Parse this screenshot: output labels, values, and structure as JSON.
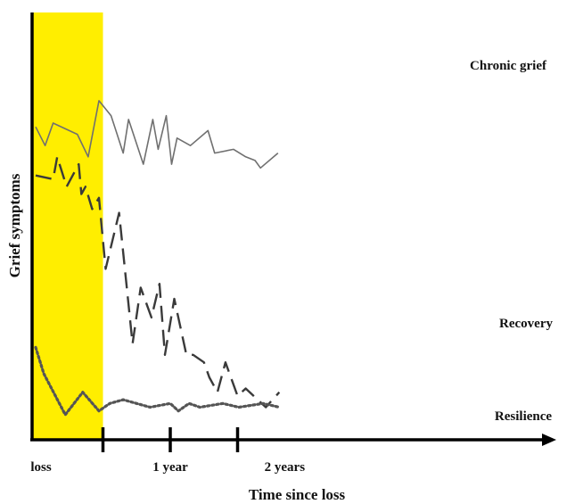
{
  "chart_data": {
    "type": "line",
    "title": "",
    "xlabel": "Time since loss",
    "ylabel": "Grief symptoms",
    "x_ticks": [
      "loss",
      "1 year",
      "2 years"
    ],
    "x_unit": "years since loss",
    "xlim": [
      -0.05,
      1.95
    ],
    "ylim": [
      0,
      100
    ],
    "shaded_region": {
      "x_from": -0.05,
      "x_to": 0.5,
      "color": "#ffee00"
    },
    "grid": false,
    "legend": "inline labels at right end of each line",
    "series": [
      {
        "name": "Chronic grief",
        "style": "solid",
        "color": "#707070",
        "x": [
          0.0,
          0.07,
          0.13,
          0.31,
          0.39,
          0.47,
          0.56,
          0.65,
          0.69,
          0.8,
          0.87,
          0.91,
          0.97,
          1.01,
          1.05,
          1.15,
          1.28,
          1.33,
          1.47,
          1.56,
          1.63,
          1.67,
          1.8
        ],
        "y": [
          83,
          78,
          84,
          81,
          75,
          90,
          86,
          76,
          85,
          73,
          85,
          77,
          86,
          73,
          80,
          78,
          82,
          76,
          77,
          75,
          74,
          72,
          76
        ]
      },
      {
        "name": "Recovery",
        "style": "dashed",
        "color": "#3a3a3a",
        "x": [
          0.0,
          0.13,
          0.16,
          0.23,
          0.32,
          0.34,
          0.37,
          0.42,
          0.47,
          0.52,
          0.62,
          0.72,
          0.78,
          0.86,
          0.92,
          0.96,
          1.03,
          1.12,
          1.17,
          1.25,
          1.29,
          1.35,
          1.41,
          1.5,
          1.56,
          1.71,
          1.81
        ],
        "y": [
          70,
          69,
          75,
          67,
          73,
          65,
          67,
          61,
          64,
          45,
          60,
          25,
          40,
          32,
          41,
          22,
          37,
          22,
          22,
          20,
          16,
          12,
          20,
          11,
          13,
          8,
          12
        ]
      },
      {
        "name": "Resilience",
        "style": "dotted",
        "color": "#555555",
        "x": [
          0.0,
          0.06,
          0.22,
          0.35,
          0.47,
          0.55,
          0.65,
          0.85,
          1.0,
          1.06,
          1.14,
          1.22,
          1.39,
          1.51,
          1.69,
          1.81
        ],
        "y": [
          24,
          17,
          6,
          12,
          7,
          9,
          10,
          8,
          9,
          7,
          9,
          8,
          9,
          8,
          9,
          8
        ]
      }
    ]
  }
}
